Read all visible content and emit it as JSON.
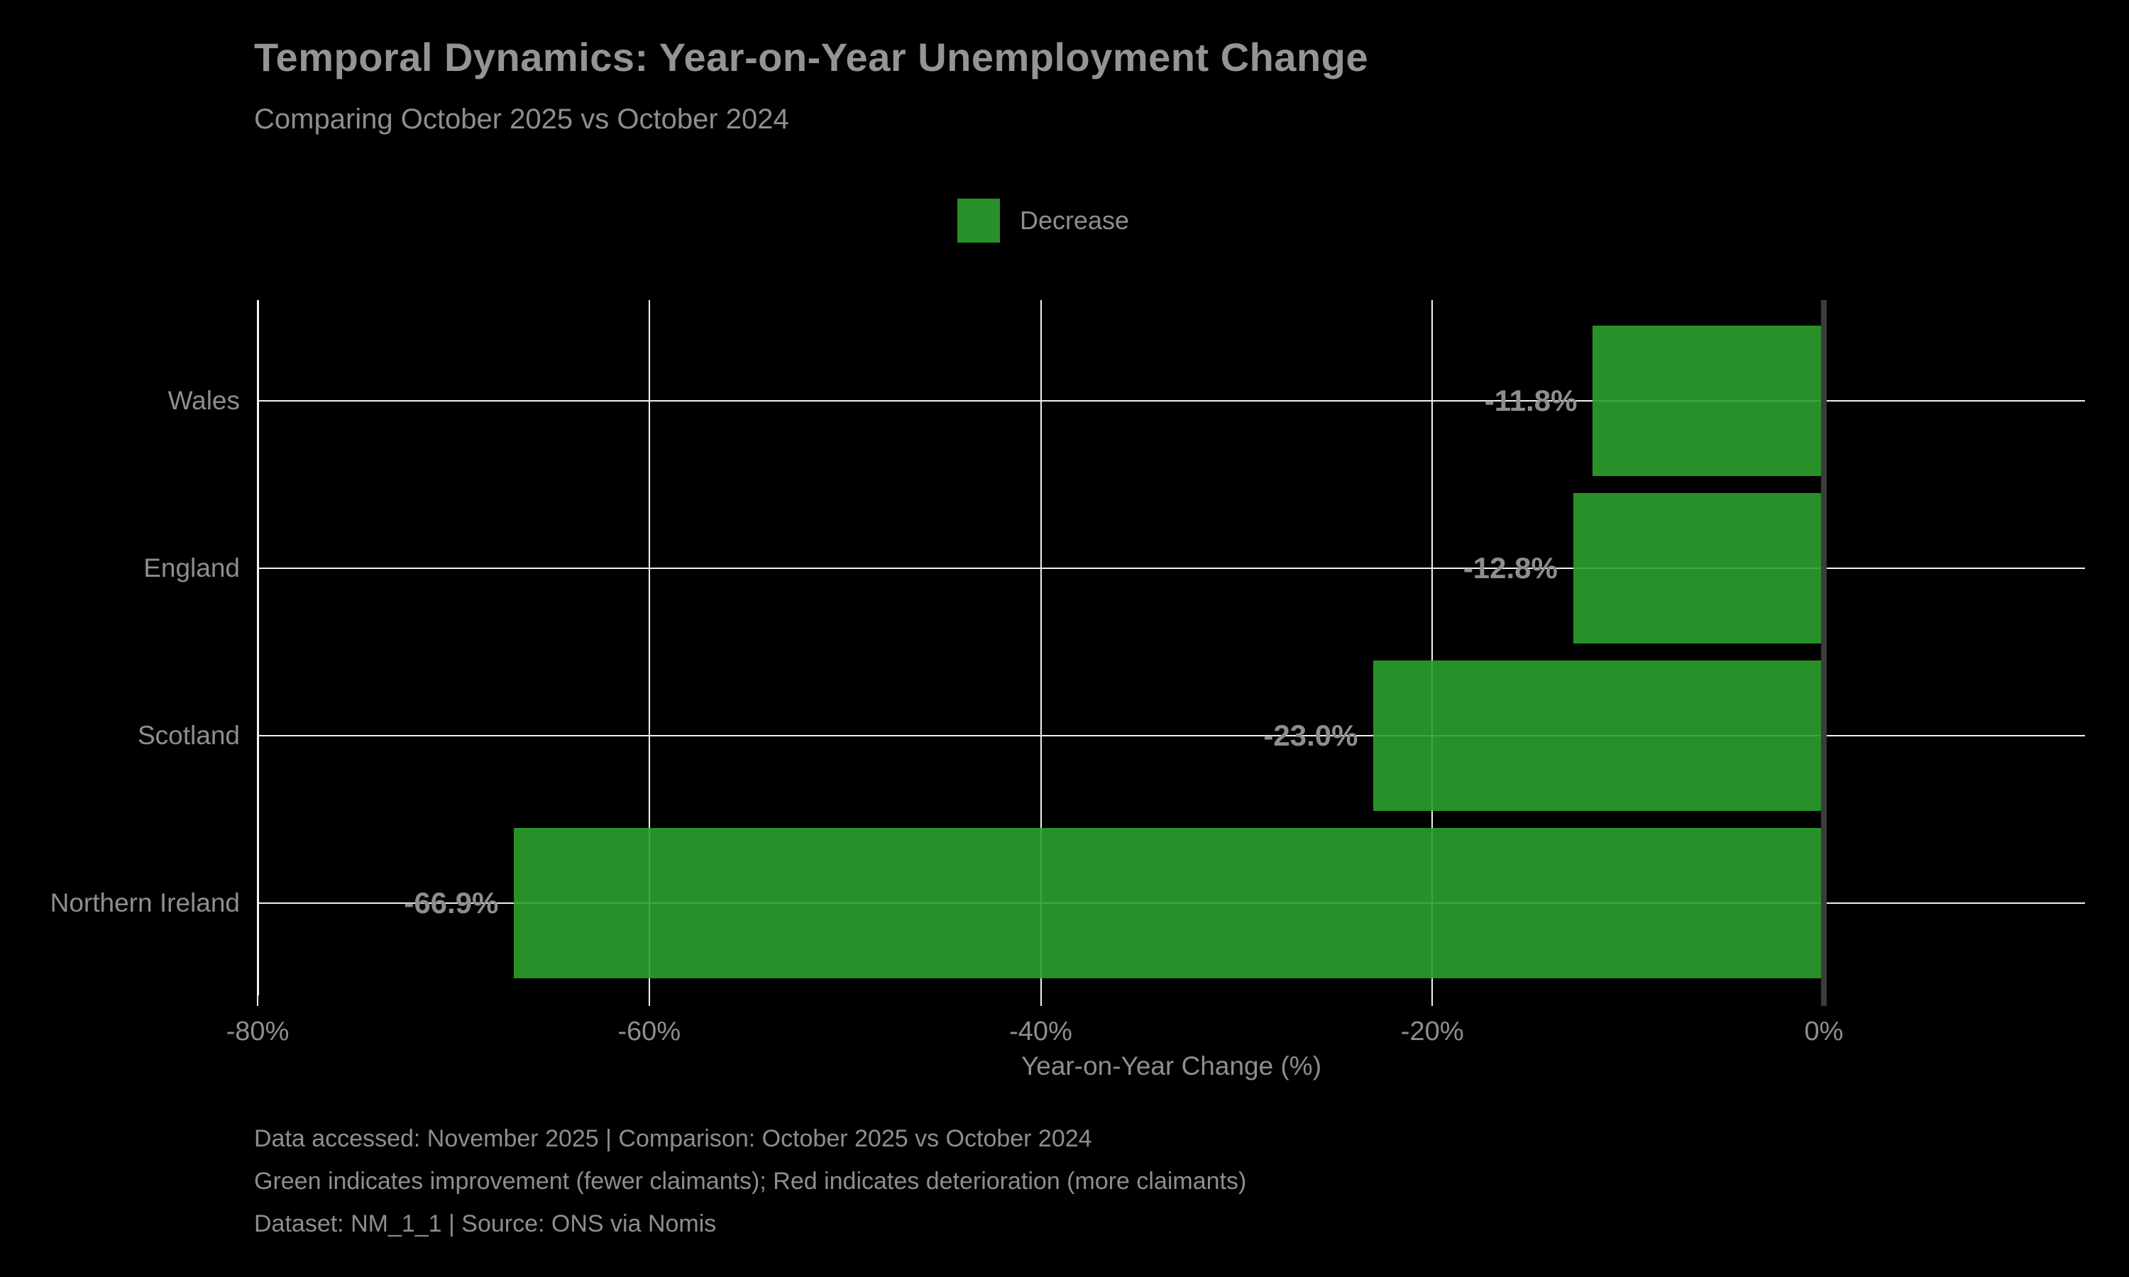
{
  "title": "Temporal Dynamics: Year-on-Year Unemployment Change",
  "subtitle": "Comparing October 2025 vs October 2024",
  "legend": {
    "label": "Decrease",
    "color": "#2ca02c"
  },
  "chart_data": {
    "type": "bar",
    "orientation": "horizontal",
    "title": "Temporal Dynamics: Year-on-Year Unemployment Change",
    "subtitle": "Comparing October 2025 vs October 2024",
    "categories": [
      "Wales",
      "England",
      "Scotland",
      "Northern Ireland"
    ],
    "values": [
      -11.8,
      -12.8,
      -23.0,
      -66.9
    ],
    "value_labels": [
      "-11.8%",
      "-12.8%",
      "-23.0%",
      "-66.9%"
    ],
    "xlabel": "Year-on-Year Change (%)",
    "ylabel": "",
    "x_tick_values": [
      -80,
      -60,
      -40,
      -20,
      0
    ],
    "x_tick_labels": [
      "-80%",
      "-60%",
      "-40%",
      "-20%",
      "0%"
    ],
    "xlim": [
      -80,
      13.3
    ],
    "grid": true,
    "legend_entries": [
      "Decrease"
    ],
    "legend_position": "upper center",
    "bar_color": "#2ca02c",
    "background_color": "#000000",
    "text_color": "#8e8e8e",
    "zero_line_color": "#3c3c3c"
  },
  "footer": {
    "line1": "Data accessed: November 2025 | Comparison: October 2025 vs October 2024",
    "line2": "Green indicates improvement (fewer claimants); Red indicates deterioration (more claimants)",
    "line3": "Dataset: NM_1_1 | Source: ONS via Nomis"
  },
  "colors": {
    "background": "#000000",
    "bar_green": "#2ca02c",
    "text_gray": "#8e8e8e",
    "gridline": "#f0f0f0",
    "zero_line": "#3c3c3c"
  }
}
